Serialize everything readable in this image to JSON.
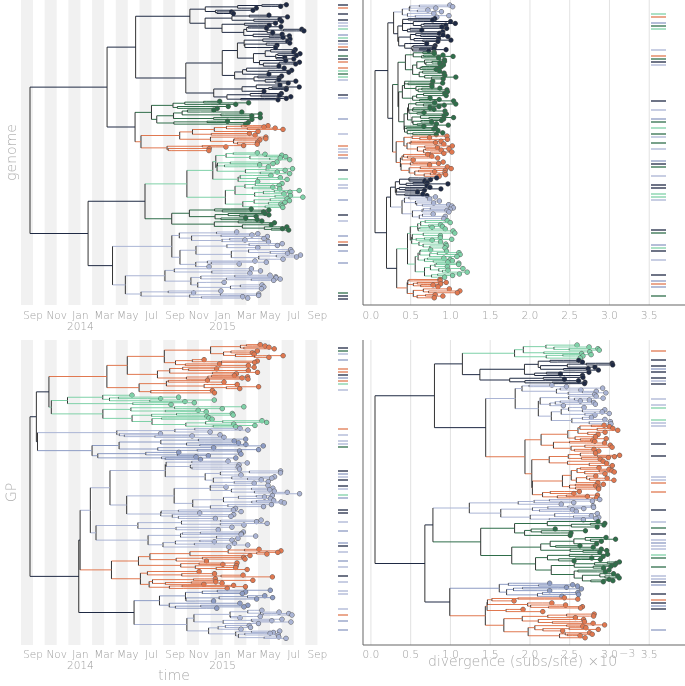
{
  "chart_data": [
    {
      "type": "tree",
      "ylabel": "genome",
      "xticks": [
        "Sep",
        "Nov",
        "Jan",
        "Mar",
        "May",
        "Jul",
        "Sep",
        "Nov",
        "Jan",
        "Mar",
        "May",
        "Jul",
        "Sep"
      ],
      "year_labels": [
        "2014",
        "2015"
      ]
    },
    {
      "type": "tree",
      "xlim": [
        -0.2,
        3.95
      ],
      "xticks": [
        {
          "value": 0,
          "label": "0.0"
        },
        0.5,
        {
          "value": 1,
          "label": "1.0"
        },
        1.5,
        {
          "value": 2,
          "label": "2.0"
        },
        2.5,
        {
          "value": 3,
          "label": "3.0"
        },
        3.5
      ]
    },
    {
      "type": "tree",
      "ylabel": "GP",
      "xticks": [
        "Sep",
        "Nov",
        "Jan",
        "Mar",
        "May",
        "Jul",
        "Sep",
        "Nov",
        "Jan",
        "Mar",
        "May",
        "Jul",
        "Sep"
      ],
      "year_labels": [
        "2014",
        "2015"
      ],
      "xlabel": "time"
    },
    {
      "type": "tree",
      "xlim": [
        -0.2,
        3.95
      ],
      "xticks": [
        {
          "value": 0,
          "label": "0.0"
        },
        0.5,
        {
          "value": 1,
          "label": "1.0"
        },
        1.5,
        {
          "value": 2,
          "label": "2.0"
        },
        2.5,
        {
          "value": 3,
          "label": "3.0"
        },
        3.5
      ],
      "xlabel": "divergence (subs/site) ×10",
      "xlabel_exponent": "−3"
    }
  ]
}
